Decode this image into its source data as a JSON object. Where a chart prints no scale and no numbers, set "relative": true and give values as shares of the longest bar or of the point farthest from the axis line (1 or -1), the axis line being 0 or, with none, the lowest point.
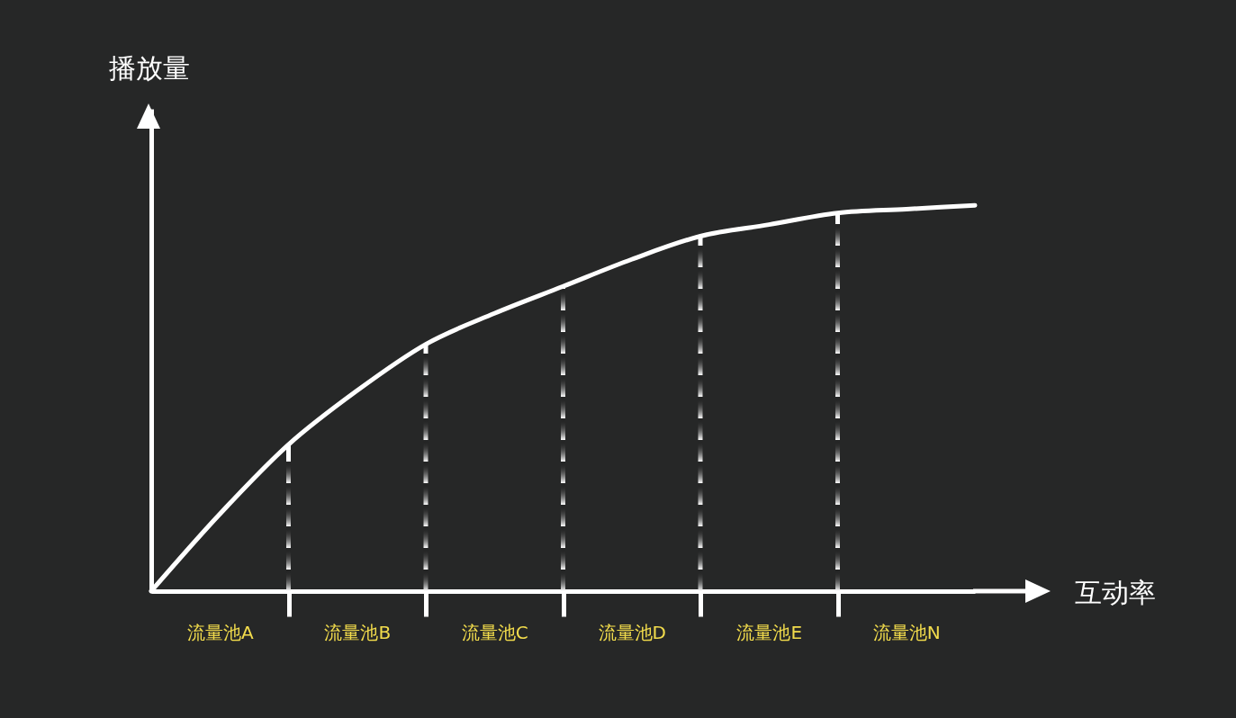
{
  "chart_data": {
    "type": "line",
    "relative": true,
    "xlabel": "互动率",
    "ylabel": "播放量",
    "categories": [
      null,
      "流量池A",
      null,
      "流量池B",
      null,
      "流量池C",
      null,
      "流量池D",
      null,
      "流量池E",
      null,
      "流量池N",
      null
    ],
    "series": [
      {
        "color": "#ffffff",
        "values": [
          0,
          0.2,
          0.38,
          0.52,
          0.64,
          0.72,
          0.79,
          0.86,
          0.92,
          0.95,
          0.98,
          0.99,
          1
        ]
      },
      {
        "type": "bar",
        "color": "#ffffff",
        "line_style": "dashed",
        "values": [
          null,
          null,
          0.38,
          null,
          0.64,
          null,
          0.79,
          null,
          0.92,
          null,
          0.98,
          null,
          null
        ]
      }
    ]
  }
}
